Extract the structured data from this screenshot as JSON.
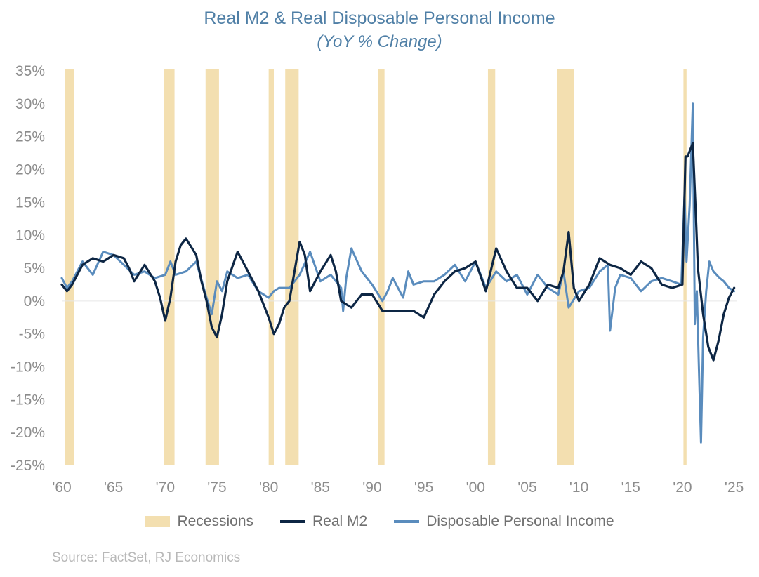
{
  "title": "Real M2 & Real Disposable Personal Income",
  "subtitle": "(YoY % Change)",
  "source": "Source: FactSet, RJ Economics",
  "colors": {
    "recession": "#f3dfb0",
    "m2": "#0d2644",
    "dpi": "#5a8cbd",
    "axis_text": "#8c8c8c",
    "title": "#4f7fa6"
  },
  "chart_data": {
    "type": "line",
    "title": "Real M2 & Real Disposable Personal Income",
    "subtitle": "(YoY % Change)",
    "xlim": [
      1960,
      2025.3
    ],
    "ylim": [
      -25,
      35
    ],
    "y_ticks": [
      35,
      30,
      25,
      20,
      15,
      10,
      5,
      0,
      -5,
      -10,
      -15,
      -20,
      -25
    ],
    "y_tick_labels": [
      "35%",
      "30%",
      "25%",
      "20%",
      "15%",
      "10%",
      "5%",
      "0%",
      "-5%",
      "-10%",
      "-15%",
      "-20%",
      "-25%"
    ],
    "x_ticks": [
      1960,
      1965,
      1970,
      1975,
      1980,
      1985,
      1990,
      1995,
      2000,
      2005,
      2010,
      2015,
      2020,
      2025
    ],
    "x_tick_labels": [
      "'60",
      "'65",
      "'70",
      "'75",
      "'80",
      "'85",
      "'90",
      "'95",
      "'00",
      "'05",
      "'10",
      "'15",
      "'20",
      "'25"
    ],
    "legend": [
      "Recessions",
      "Real M2",
      "Disposable Personal Income"
    ],
    "legend_position": "bottom",
    "recessions": [
      [
        1960.3,
        1961.2
      ],
      [
        1969.9,
        1970.9
      ],
      [
        1973.9,
        1975.2
      ],
      [
        1980.0,
        1980.5
      ],
      [
        1981.6,
        1982.9
      ],
      [
        1990.6,
        1991.2
      ],
      [
        2001.2,
        2001.9
      ],
      [
        2007.9,
        2009.5
      ],
      [
        2020.1,
        2020.4
      ]
    ],
    "series": [
      {
        "name": "Real M2",
        "x": [
          1960,
          1960.5,
          1961,
          1962,
          1963,
          1964,
          1965,
          1966,
          1966.5,
          1967,
          1968,
          1969,
          1969.5,
          1970,
          1970.5,
          1971,
          1971.5,
          1972,
          1973,
          1973.5,
          1974,
          1974.5,
          1975,
          1975.5,
          1976,
          1977,
          1977.5,
          1978,
          1979,
          1980,
          1980.5,
          1981,
          1981.5,
          1982,
          1983,
          1983.5,
          1984,
          1985,
          1986,
          1986.5,
          1987,
          1988,
          1989,
          1990,
          1991,
          1992,
          1993,
          1994,
          1995,
          1996,
          1997,
          1998,
          1999,
          2000,
          2001,
          2002,
          2003,
          2004,
          2005,
          2006,
          2007,
          2008,
          2008.5,
          2009,
          2009.5,
          2010,
          2011,
          2012,
          2013,
          2014,
          2015,
          2016,
          2017,
          2018,
          2019,
          2020,
          2020.3,
          2020.5,
          2021,
          2021.3,
          2021.5,
          2022,
          2022.5,
          2023,
          2023.5,
          2024,
          2024.5,
          2025
        ],
        "values": [
          2.5,
          1.5,
          2.5,
          5.5,
          6.5,
          6.0,
          7.0,
          6.5,
          5.0,
          3.0,
          5.5,
          3.0,
          0.5,
          -3.0,
          0.5,
          6.0,
          8.5,
          9.5,
          7.0,
          3.0,
          0,
          -4.0,
          -5.5,
          -2.0,
          3.0,
          7.5,
          6.0,
          4.5,
          1.5,
          -2.5,
          -5.0,
          -3.5,
          -1.0,
          0,
          9.0,
          7.0,
          1.5,
          4.5,
          7.0,
          4.5,
          0,
          -1.0,
          1.0,
          1.0,
          -1.5,
          -1.5,
          -1.5,
          -1.5,
          -2.5,
          1.0,
          3.0,
          4.5,
          5.0,
          6.0,
          1.5,
          8.0,
          4.5,
          2.0,
          2.0,
          0,
          2.5,
          2.0,
          4.5,
          10.5,
          2.0,
          0,
          2.5,
          6.5,
          5.5,
          5.0,
          4.0,
          6.0,
          5.0,
          2.5,
          2.0,
          2.5,
          22.0,
          22.0,
          24.0,
          13.0,
          5.0,
          -2.0,
          -7.0,
          -9.0,
          -6.0,
          -2.0,
          0.5,
          2.0
        ]
      },
      {
        "name": "Disposable Personal Income",
        "x": [
          1960,
          1960.5,
          1961,
          1962,
          1963,
          1964,
          1965,
          1966,
          1967,
          1968,
          1969,
          1970,
          1970.5,
          1971,
          1972,
          1973,
          1974,
          1974.5,
          1975,
          1975.5,
          1976,
          1977,
          1978,
          1979,
          1980,
          1980.5,
          1981,
          1982,
          1983,
          1984,
          1985,
          1986,
          1987,
          1987.2,
          1987.5,
          1988,
          1989,
          1990,
          1991,
          1991.5,
          1992,
          1993,
          1993.5,
          1994,
          1995,
          1996,
          1997,
          1998,
          1999,
          2000,
          2001,
          2002,
          2003,
          2004,
          2005,
          2006,
          2007,
          2008,
          2008.5,
          2009,
          2010,
          2011,
          2012,
          2012.8,
          2013,
          2013.5,
          2014,
          2015,
          2016,
          2017,
          2018,
          2019,
          2019.9,
          2020.2,
          2020.4,
          2020.7,
          2021.0,
          2021.2,
          2021.4,
          2021.6,
          2021.8,
          2022.0,
          2022.3,
          2022.6,
          2023.0,
          2023.3,
          2023.6,
          2024,
          2024.5,
          2025
        ],
        "values": [
          3.5,
          2.0,
          3.0,
          6.0,
          4.0,
          7.5,
          7.0,
          5.5,
          4.0,
          4.5,
          3.5,
          4.0,
          6.0,
          4.0,
          4.5,
          6.0,
          0.5,
          -2.0,
          3.0,
          1.5,
          4.5,
          3.5,
          4.0,
          1.5,
          0.5,
          1.5,
          2.0,
          2.0,
          4.0,
          7.5,
          3.0,
          4.0,
          2.0,
          -1.5,
          3.5,
          8.0,
          4.5,
          2.5,
          0,
          1.5,
          3.5,
          0.5,
          4.5,
          2.5,
          3.0,
          3.0,
          4.0,
          5.5,
          3.0,
          6.0,
          2.0,
          4.5,
          3.0,
          4.0,
          1.0,
          4.0,
          2.0,
          1.0,
          4.5,
          -1.0,
          1.5,
          2.0,
          4.5,
          5.5,
          -4.5,
          2.0,
          4.0,
          3.5,
          1.5,
          3.0,
          3.5,
          3.0,
          2.5,
          16.0,
          6.0,
          14.5,
          30.0,
          -3.5,
          1.5,
          -10.5,
          -21.5,
          -5.5,
          1.5,
          6.0,
          4.5,
          4.0,
          3.5,
          3.0,
          2.0,
          1.5
        ]
      }
    ]
  }
}
